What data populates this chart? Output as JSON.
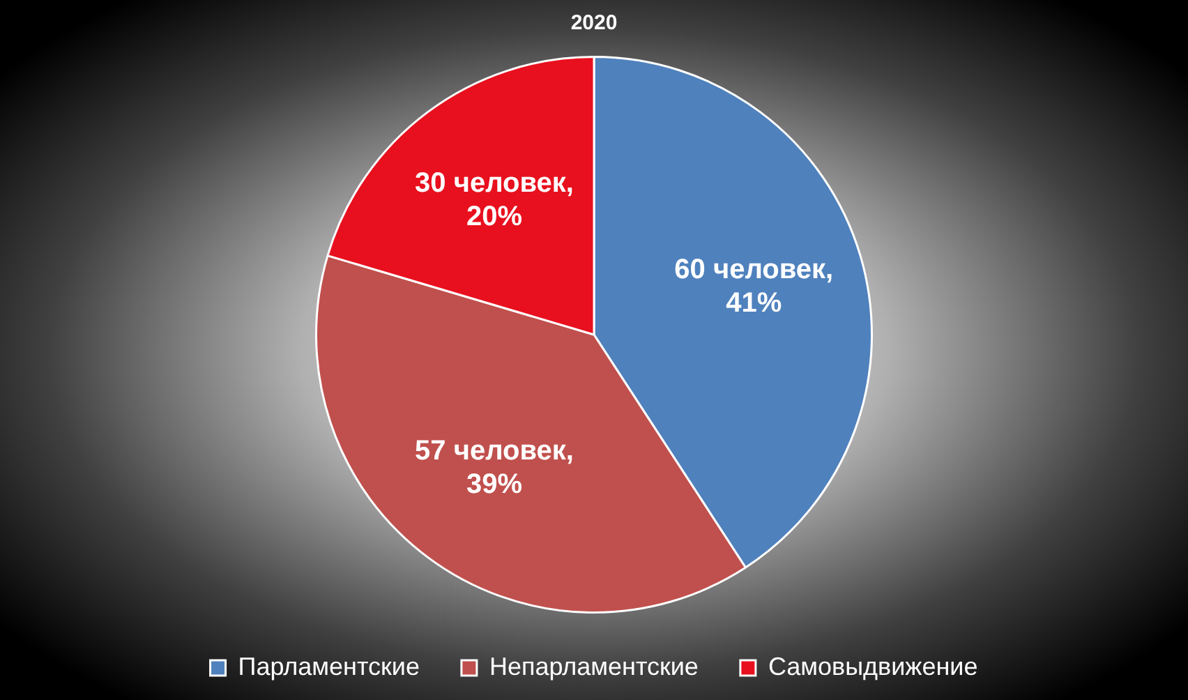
{
  "chart_data": {
    "type": "pie",
    "title": "2020",
    "categories": [
      "Парламентские",
      "Непарламентские",
      "Самовыдвижение"
    ],
    "values": [
      60,
      57,
      30
    ],
    "colors": [
      "#4f81bd",
      "#c0504d",
      "#e8101e"
    ],
    "value_labels": [
      "60 человек, 41%",
      "57 человек, 39%",
      "30 человек, 20%"
    ],
    "legend": "bottom"
  }
}
